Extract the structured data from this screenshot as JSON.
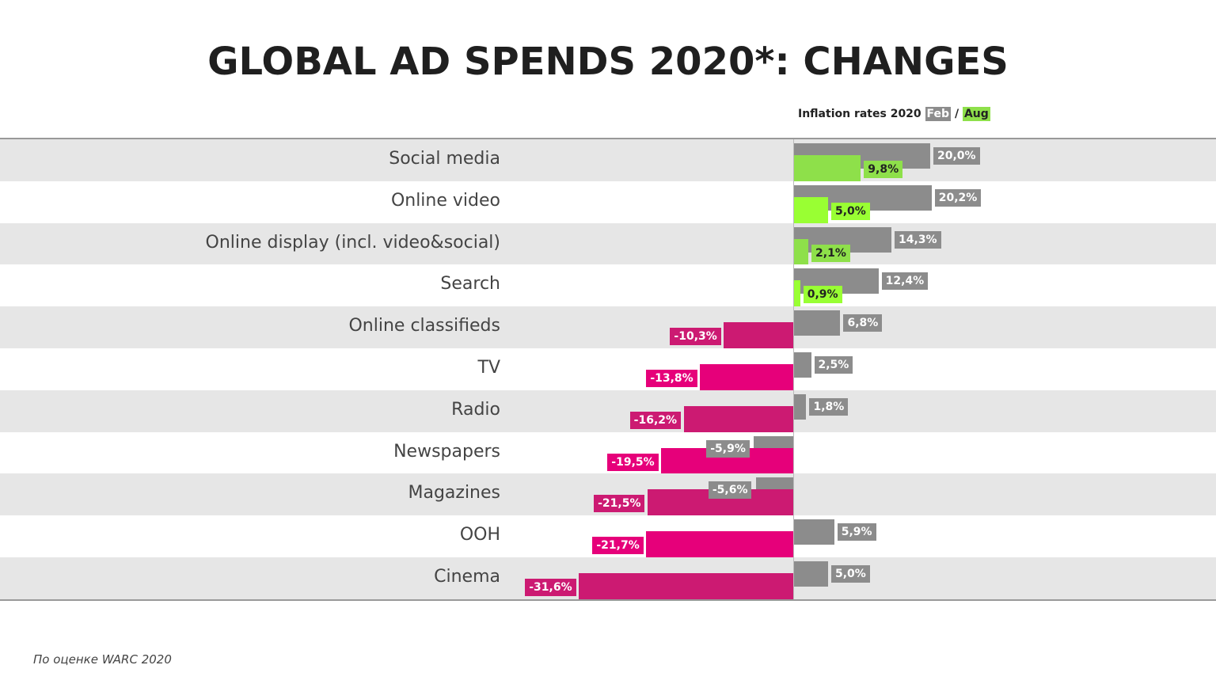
{
  "title": "GLOBAL AD SPENDS 2020*: CHANGES",
  "legend": {
    "prefix": "Inflation rates 2020",
    "feb": "Feb",
    "sep": "/",
    "aug": "Aug"
  },
  "source": "По оценке WARC 2020",
  "colors": {
    "feb": "#8c8c8c",
    "aug_light": "#99ff33",
    "aug_dark": "#8ee04a",
    "negative_light": "#e6007a",
    "negative_dark": "#cc1a72",
    "row_alt": "#e6e6e6"
  },
  "chart_data": {
    "type": "bar",
    "orientation": "horizontal",
    "categories": [
      "Social media",
      "Online video",
      "Online display (incl. video&social)",
      "Search",
      "Online classifieds",
      "TV",
      "Radio",
      "Newspapers",
      "Magazines",
      "OOH",
      "Cinema"
    ],
    "series": [
      {
        "name": "Feb",
        "values": [
          20.0,
          20.2,
          14.3,
          12.4,
          6.8,
          2.5,
          1.8,
          -5.9,
          -5.6,
          5.9,
          5.0
        ],
        "labels": [
          "20,0%",
          "20,2%",
          "14,3%",
          "12,4%",
          "6,8%",
          "2,5%",
          "1,8%",
          "-5,9%",
          "-5,6%",
          "5,9%",
          "5,0%"
        ]
      },
      {
        "name": "Aug",
        "values": [
          9.8,
          5.0,
          2.1,
          0.9,
          -10.3,
          -13.8,
          -16.2,
          -19.5,
          -21.5,
          -21.7,
          -31.6
        ],
        "labels": [
          "9,8%",
          "5,0%",
          "2,1%",
          "0,9%",
          "-10,3%",
          "-13,8%",
          "-16,2%",
          "-19,5%",
          "-21,5%",
          "-21,7%",
          "-31,6%"
        ]
      }
    ],
    "xlim": [
      -32,
      22
    ]
  }
}
